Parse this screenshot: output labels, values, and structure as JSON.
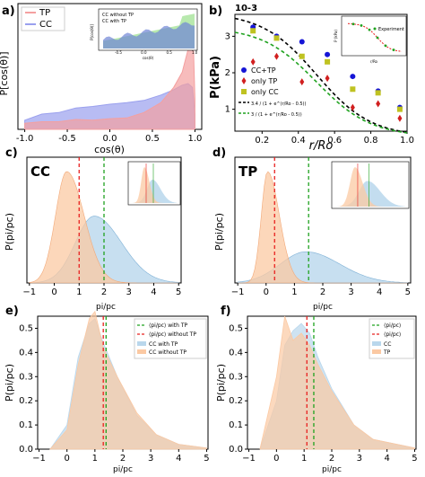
{
  "panels": {
    "a": {
      "letter": "a)",
      "ylabel": "P[cos(θ)]",
      "xlabel": "cos(θ)",
      "xticks": [
        "-1.0",
        "-0.5",
        "0.0",
        "0.5",
        "1.0"
      ],
      "legend": [
        "TP",
        "CC"
      ],
      "colors": {
        "TP": "#f4a0a0",
        "CC": "#9aa0ee"
      },
      "inset": {
        "legend": [
          "CC without TP",
          "CC with TP"
        ],
        "xlabel": "cos(θ)",
        "ylabel": "P[cos(θ)]",
        "xticks": [
          "-0.5",
          "0.0",
          "0.5",
          "1.0"
        ]
      }
    },
    "b": {
      "letter": "b)",
      "multiplier": "10-3",
      "ylabel": "P(kPa)",
      "xlabel": "r/Ro",
      "yticks": [
        "1",
        "2",
        "3"
      ],
      "xticks": [
        "0.2",
        "0.4",
        "0.6",
        "0.8",
        "1.0"
      ],
      "legend": [
        "CC+TP",
        "only TP",
        "only CC",
        "3.4 / (1 + e^(r/Ro - 0.5))",
        "3 / (1 + e^(r/Ro - 0.5))"
      ],
      "inset": {
        "legend": [
          "Experiment"
        ],
        "ylabel": "P (kPa)",
        "xlabel": "r/Ro"
      }
    },
    "c": {
      "letter": "c)",
      "label": "CC",
      "ylabel": "P(pi/pc)",
      "xlabel": "pi/pc",
      "xticks": [
        "−1",
        "0",
        "1",
        "2",
        "3",
        "4",
        "5"
      ]
    },
    "d": {
      "letter": "d)",
      "label": "TP",
      "ylabel": "P(pi/pc)",
      "xlabel": "pi/pc",
      "xticks": [
        "−1",
        "0",
        "1",
        "2",
        "3",
        "4",
        "5"
      ]
    },
    "e": {
      "letter": "e)",
      "ylabel": "P(pi/pc)",
      "xlabel": "pi/pc",
      "yticks": [
        "0.0",
        "0.1",
        "0.2",
        "0.3",
        "0.4",
        "0.5"
      ],
      "xticks": [
        "−1",
        "0",
        "1",
        "2",
        "3",
        "4",
        "5"
      ],
      "legend": [
        "⟨pi/pc⟩ with TP",
        "⟨pi/pc⟩ without TP",
        "CC with TP",
        "CC without TP"
      ]
    },
    "f": {
      "letter": "f)",
      "ylabel": "P(pi/pc)",
      "xlabel": "pi/pc",
      "yticks": [
        "0.0",
        "0.1",
        "0.2",
        "0.3",
        "0.4",
        "0.5"
      ],
      "xticks": [
        "−1",
        "0",
        "1",
        "2",
        "3",
        "4",
        "5"
      ],
      "legend": [
        "⟨pi/pc⟩",
        "⟨pi/pc⟩",
        "CC",
        "TP"
      ]
    }
  },
  "chart_data": [
    {
      "type": "area",
      "panel": "a",
      "x_range": [
        -1.0,
        1.0
      ],
      "series": [
        {
          "name": "TP",
          "x": [
            -1.0,
            -0.8,
            -0.6,
            -0.4,
            -0.2,
            0.0,
            0.2,
            0.4,
            0.6,
            0.75,
            0.85,
            0.92,
            0.97,
            1.0
          ],
          "y": [
            0.08,
            0.1,
            0.1,
            0.13,
            0.12,
            0.14,
            0.15,
            0.22,
            0.35,
            0.55,
            0.75,
            1.05,
            1.55,
            0.4
          ]
        },
        {
          "name": "CC",
          "x": [
            -1.0,
            -0.8,
            -0.6,
            -0.4,
            -0.2,
            0.0,
            0.2,
            0.4,
            0.6,
            0.75,
            0.85,
            0.92,
            0.97,
            1.0
          ],
          "y": [
            0.12,
            0.2,
            0.22,
            0.28,
            0.3,
            0.33,
            0.35,
            0.38,
            0.45,
            0.52,
            0.58,
            0.6,
            0.55,
            0.2
          ]
        }
      ]
    },
    {
      "type": "scatter",
      "panel": "b",
      "ylabel": "P(kPa)",
      "xlabel": "r/Ro",
      "series": [
        {
          "name": "CC+TP",
          "x": [
            0.15,
            0.28,
            0.42,
            0.56,
            0.7,
            0.84,
            0.96
          ],
          "y": [
            3.25,
            3.0,
            2.85,
            2.5,
            1.9,
            1.5,
            1.05
          ]
        },
        {
          "name": "only TP",
          "x": [
            0.15,
            0.28,
            0.42,
            0.56,
            0.7,
            0.84,
            0.96
          ],
          "y": [
            2.3,
            2.45,
            1.75,
            1.85,
            1.05,
            1.15,
            0.75
          ]
        },
        {
          "name": "only CC",
          "x": [
            0.15,
            0.28,
            0.42,
            0.56,
            0.7,
            0.84,
            0.96
          ],
          "y": [
            3.15,
            2.95,
            2.45,
            2.3,
            1.55,
            1.45,
            1.0
          ]
        }
      ],
      "curves": [
        {
          "name": "3.4 / (1 + e^(r/Ro - 0.5))",
          "amplitude": 3.4
        },
        {
          "name": "3 / (1 + e^(r/Ro - 0.5))",
          "amplitude": 3.0
        }
      ]
    },
    {
      "type": "area",
      "panel": "c",
      "series": [
        {
          "name": "",
          "peak_x": 0.5,
          "peak_y": 1.0,
          "color": "#fbc9a3"
        },
        {
          "name": "",
          "peak_x": 1.6,
          "peak_y": 0.6,
          "color": "#b9d7ec"
        }
      ],
      "vlines": [
        1.0,
        2.0
      ]
    },
    {
      "type": "area",
      "panel": "d",
      "series": [
        {
          "name": "",
          "peak_x": 0.05,
          "peak_y": 1.0,
          "color": "#fbc9a3"
        },
        {
          "name": "",
          "peak_x": 1.4,
          "peak_y": 0.3,
          "color": "#b9d7ec"
        }
      ],
      "vlines": [
        0.3,
        1.5
      ]
    },
    {
      "type": "area",
      "panel": "e",
      "ylim": [
        0,
        0.55
      ],
      "series": [
        {
          "name": "CC with TP",
          "x": [
            -0.6,
            0,
            0.4,
            0.8,
            1.0,
            1.3,
            1.8,
            2.5,
            3.2,
            4.0,
            5.0
          ],
          "y": [
            0,
            0.1,
            0.38,
            0.52,
            0.54,
            0.44,
            0.3,
            0.14,
            0.06,
            0.02,
            0.005
          ]
        },
        {
          "name": "CC without TP",
          "x": [
            -0.6,
            0,
            0.4,
            0.8,
            1.0,
            1.3,
            1.8,
            2.5,
            3.2,
            4.0,
            5.0
          ],
          "y": [
            0,
            0.08,
            0.35,
            0.54,
            0.57,
            0.42,
            0.3,
            0.15,
            0.06,
            0.02,
            0.005
          ]
        }
      ],
      "vlines": [
        1.3,
        1.4
      ]
    },
    {
      "type": "area",
      "panel": "f",
      "ylim": [
        0,
        0.55
      ],
      "series": [
        {
          "name": "CC",
          "x": [
            -0.6,
            0,
            0.3,
            0.6,
            0.9,
            1.2,
            1.5,
            2.0,
            2.8,
            3.5,
            5.0
          ],
          "y": [
            0,
            0.2,
            0.43,
            0.49,
            0.52,
            0.48,
            0.38,
            0.25,
            0.1,
            0.04,
            0.005
          ]
        },
        {
          "name": "TP",
          "x": [
            -0.6,
            0,
            0.3,
            0.6,
            0.9,
            1.2,
            1.5,
            2.0,
            2.8,
            3.5,
            5.0
          ],
          "y": [
            0,
            0.3,
            0.55,
            0.45,
            0.48,
            0.43,
            0.35,
            0.24,
            0.1,
            0.04,
            0.005
          ]
        }
      ],
      "vlines": [
        1.1,
        1.35
      ]
    }
  ]
}
